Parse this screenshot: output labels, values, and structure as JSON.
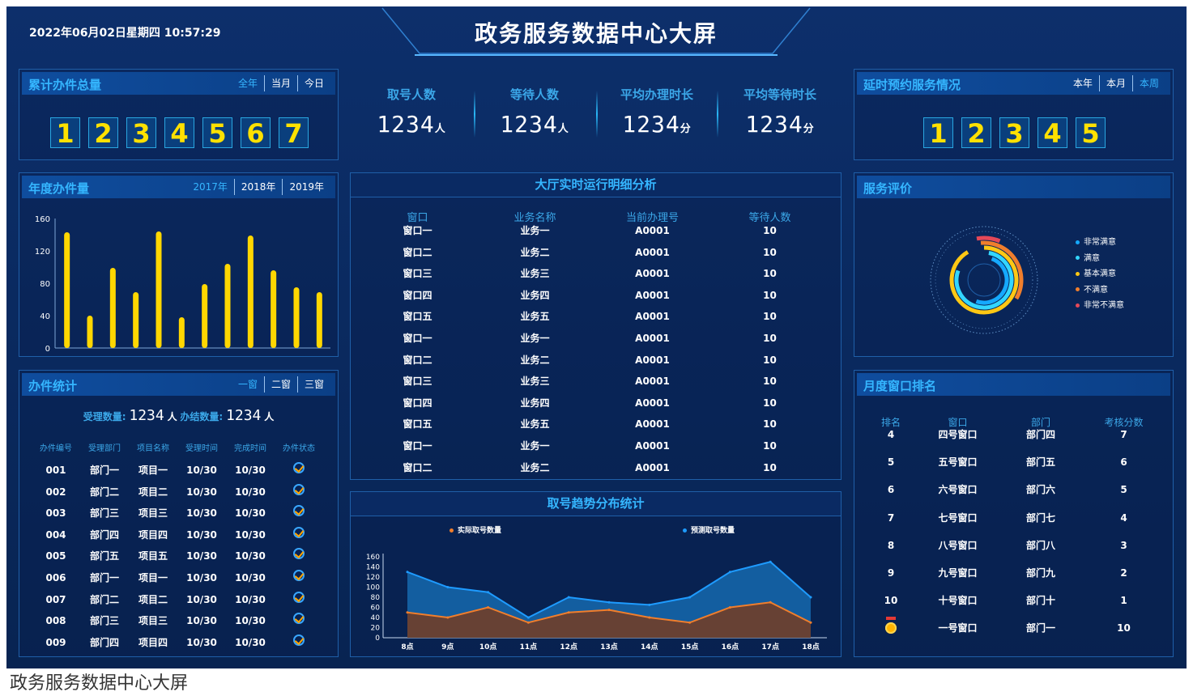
{
  "header": {
    "datetime": "2022年06月02日星期四 10:57:29",
    "title": "政务服务数据中心大屏"
  },
  "total_panel": {
    "title": "累计办件总量",
    "tabs": [
      "全年",
      "当月",
      "今日"
    ],
    "digits": [
      "1",
      "2",
      "3",
      "4",
      "5",
      "6",
      "7"
    ]
  },
  "delay_panel": {
    "title": "延时预约服务情况",
    "tabs": [
      "本年",
      "本月",
      "本周"
    ],
    "digits": [
      "1",
      "2",
      "3",
      "4",
      "5"
    ]
  },
  "stats": [
    {
      "label": "取号人数",
      "value": "1234",
      "unit": "人"
    },
    {
      "label": "等待人数",
      "value": "1234",
      "unit": "人"
    },
    {
      "label": "平均办理时长",
      "value": "1234",
      "unit": "分"
    },
    {
      "label": "平均等待时长",
      "value": "1234",
      "unit": "分"
    }
  ],
  "annual_panel": {
    "title": "年度办件量",
    "tabs": [
      "2017年",
      "2018年",
      "2019年"
    ]
  },
  "chart_data": [
    {
      "type": "bar",
      "values": [
        143,
        40,
        99,
        69,
        144,
        38,
        79,
        104,
        139,
        96,
        75,
        69
      ],
      "ylim": [
        0,
        160
      ],
      "yticks": [
        "0",
        "40",
        "80",
        "120",
        "160"
      ],
      "color": "#ffd700"
    },
    {
      "type": "area",
      "title": "取号趋势分布统计",
      "categories": [
        "8点",
        "9点",
        "10点",
        "11点",
        "12点",
        "13点",
        "14点",
        "15点",
        "16点",
        "17点",
        "18点"
      ],
      "ylim": [
        0,
        160
      ],
      "yticks": [
        "0",
        "20",
        "40",
        "60",
        "80",
        "100",
        "120",
        "140",
        "160"
      ],
      "series": [
        {
          "name": "预测取号数量",
          "values": [
            130,
            100,
            90,
            40,
            80,
            70,
            65,
            80,
            130,
            150,
            80
          ],
          "color": "#1e9bff"
        },
        {
          "name": "实际取号数量",
          "values": [
            50,
            40,
            60,
            30,
            50,
            55,
            40,
            30,
            60,
            70,
            30
          ],
          "color": "#f07e2c"
        }
      ]
    },
    {
      "type": "radial",
      "legend": [
        "非常满意",
        "满意",
        "基本满意",
        "不满意",
        "非常不满意"
      ],
      "colors": [
        "#15a9ff",
        "#33d6ff",
        "#ffc814",
        "#f07e2c",
        "#e54858"
      ]
    }
  ],
  "hall_panel": {
    "title": "大厅实时运行明细分析",
    "headers": [
      "窗口",
      "业务名称",
      "当前办理号",
      "等待人数"
    ],
    "rows": [
      [
        "窗口一",
        "业务一",
        "A0001",
        "10"
      ],
      [
        "窗口二",
        "业务二",
        "A0001",
        "10"
      ],
      [
        "窗口三",
        "业务三",
        "A0001",
        "10"
      ],
      [
        "窗口四",
        "业务四",
        "A0001",
        "10"
      ],
      [
        "窗口五",
        "业务五",
        "A0001",
        "10"
      ],
      [
        "窗口一",
        "业务一",
        "A0001",
        "10"
      ],
      [
        "窗口二",
        "业务二",
        "A0001",
        "10"
      ],
      [
        "窗口三",
        "业务三",
        "A0001",
        "10"
      ],
      [
        "窗口四",
        "业务四",
        "A0001",
        "10"
      ],
      [
        "窗口五",
        "业务五",
        "A0001",
        "10"
      ],
      [
        "窗口一",
        "业务一",
        "A0001",
        "10"
      ],
      [
        "窗口二",
        "业务二",
        "A0001",
        "10"
      ]
    ]
  },
  "work_panel": {
    "title": "办件统计",
    "tabs": [
      "一窗",
      "二窗",
      "三窗"
    ],
    "accept_label": "受理数量:",
    "accept_value": "1234",
    "accept_unit": "人",
    "done_label": "办结数量:",
    "done_value": "1234",
    "done_unit": "人",
    "headers": [
      "办件编号",
      "受理部门",
      "项目名称",
      "受理时间",
      "完成时间",
      "办件状态"
    ],
    "rows": [
      [
        "001",
        "部门一",
        "项目一",
        "10/30",
        "10/30"
      ],
      [
        "002",
        "部门二",
        "项目二",
        "10/30",
        "10/30"
      ],
      [
        "003",
        "部门三",
        "项目三",
        "10/30",
        "10/30"
      ],
      [
        "004",
        "部门四",
        "项目四",
        "10/30",
        "10/30"
      ],
      [
        "005",
        "部门五",
        "项目五",
        "10/30",
        "10/30"
      ],
      [
        "006",
        "部门一",
        "项目一",
        "10/30",
        "10/30"
      ],
      [
        "007",
        "部门二",
        "项目二",
        "10/30",
        "10/30"
      ],
      [
        "008",
        "部门三",
        "项目三",
        "10/30",
        "10/30"
      ],
      [
        "009",
        "部门四",
        "项目四",
        "10/30",
        "10/30"
      ]
    ]
  },
  "eval_panel": {
    "title": "服务评价"
  },
  "rank_panel": {
    "title": "月度窗口排名",
    "headers": [
      "排名",
      "窗口",
      "部门",
      "考核分数"
    ],
    "rows": [
      [
        "4",
        "四号窗口",
        "部门四",
        "7"
      ],
      [
        "5",
        "五号窗口",
        "部门五",
        "6"
      ],
      [
        "6",
        "六号窗口",
        "部门六",
        "5"
      ],
      [
        "7",
        "七号窗口",
        "部门七",
        "4"
      ],
      [
        "8",
        "八号窗口",
        "部门八",
        "3"
      ],
      [
        "9",
        "九号窗口",
        "部门九",
        "2"
      ],
      [
        "10",
        "十号窗口",
        "部门十",
        "1"
      ],
      [
        "",
        "一号窗口",
        "部门一",
        "10"
      ]
    ]
  },
  "caption": "政务服务数据中心大屏"
}
